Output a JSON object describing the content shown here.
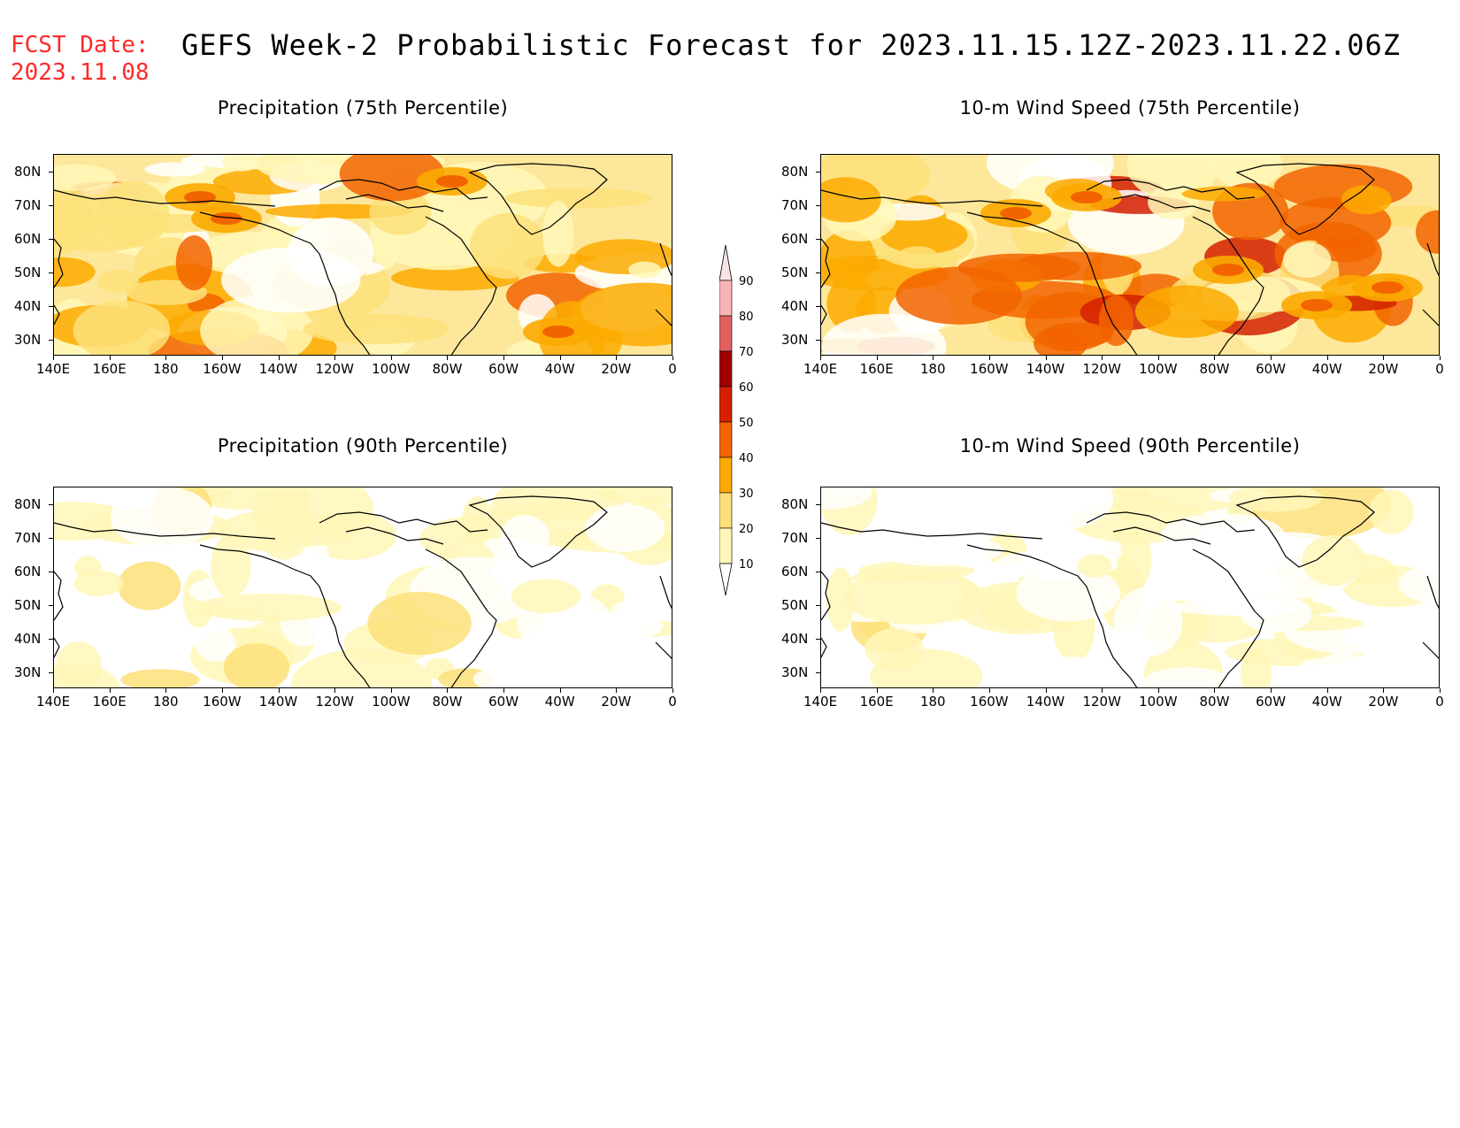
{
  "header": {
    "fcst_label": "FCST Date:",
    "fcst_date": "2023.11.08",
    "title": "GEFS Week-2 Probabilistic Forecast for 2023.11.15.12Z-2023.11.22.06Z"
  },
  "panels": [
    {
      "title": "Precipitation (75th Percentile)",
      "level": 0.55
    },
    {
      "title": "10-m Wind Speed (75th Percentile)",
      "level": 0.7
    },
    {
      "title": "Precipitation (90th Percentile)",
      "level": 0.2
    },
    {
      "title": "10-m Wind Speed (90th Percentile)",
      "level": 0.22
    }
  ],
  "axes": {
    "lat_labels": [
      "80N",
      "70N",
      "60N",
      "50N",
      "40N",
      "30N"
    ],
    "lon_labels": [
      "140E",
      "160E",
      "180",
      "160W",
      "140W",
      "120W",
      "100W",
      "80W",
      "60W",
      "40W",
      "20W",
      "0"
    ]
  },
  "legend": {
    "levels": [
      "90",
      "80",
      "70",
      "60",
      "50",
      "40",
      "30",
      "20",
      "10"
    ],
    "colors": [
      "#f8b4b4",
      "#e06060",
      "#a00000",
      "#d42000",
      "#f26400",
      "#fbaa00",
      "#fde07a",
      "#fff7b8",
      "#ffffff"
    ]
  }
}
